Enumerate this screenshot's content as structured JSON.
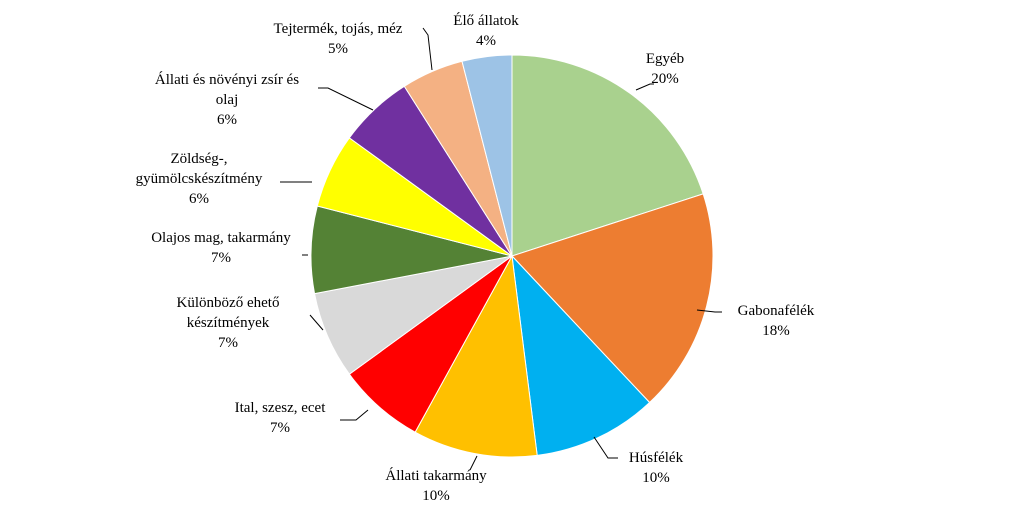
{
  "chart_data": {
    "type": "pie",
    "title": "",
    "slices": [
      {
        "label_lines": [
          "Egyéb"
        ],
        "value_label": "20%",
        "value": 20,
        "color": "#A9D18E"
      },
      {
        "label_lines": [
          "Gabonafélék"
        ],
        "value_label": "18%",
        "value": 18,
        "color": "#ED7D31"
      },
      {
        "label_lines": [
          "Húsfélék"
        ],
        "value_label": "10%",
        "value": 10,
        "color": "#00B0F0"
      },
      {
        "label_lines": [
          "Állati  takarmány"
        ],
        "value_label": "10%",
        "value": 10,
        "color": "#FFC000"
      },
      {
        "label_lines": [
          "Ital,  szesz, ecet"
        ],
        "value_label": "7%",
        "value": 7,
        "color": "#FF0000"
      },
      {
        "label_lines": [
          "Különböző ehető",
          "készítmények"
        ],
        "value_label": "7%",
        "value": 7,
        "color": "#D9D9D9"
      },
      {
        "label_lines": [
          "Olajos mag, takarmány"
        ],
        "value_label": "7%",
        "value": 7,
        "color": "#548235"
      },
      {
        "label_lines": [
          "Zöldség-,",
          "gyümölcskészítmény"
        ],
        "value_label": "6%",
        "value": 6,
        "color": "#FFFF00"
      },
      {
        "label_lines": [
          "Állati  és növényi zsír és",
          "olaj"
        ],
        "value_label": "6%",
        "value": 6,
        "color": "#7030A0"
      },
      {
        "label_lines": [
          "Tejtermék,  tojás,  méz"
        ],
        "value_label": "5%",
        "value": 5,
        "color": "#F4B183"
      },
      {
        "label_lines": [
          "Élő  állatok"
        ],
        "value_label": "4%",
        "value": 4,
        "color": "#9DC3E6"
      }
    ]
  }
}
